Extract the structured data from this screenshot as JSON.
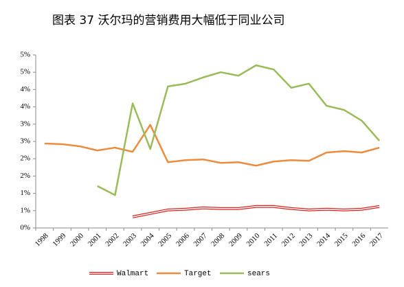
{
  "chart_data": {
    "type": "line",
    "title": "图表 37 沃尔玛的营销费用大幅低于同业公司",
    "categories": [
      "1998",
      "1999",
      "2000",
      "2001",
      "2002",
      "2003",
      "2004",
      "2005",
      "2006",
      "2007",
      "2008",
      "2009",
      "2010",
      "2011",
      "2012",
      "2013",
      "2014",
      "2015",
      "2016",
      "2017"
    ],
    "series": [
      {
        "name": "Walmart",
        "color": "#e02020",
        "values": [
          null,
          null,
          null,
          null,
          null,
          0.32,
          0.42,
          0.52,
          0.54,
          0.58,
          0.56,
          0.56,
          0.62,
          0.62,
          0.56,
          0.52,
          0.54,
          0.52,
          0.54,
          0.62
        ]
      },
      {
        "name": "Target",
        "color": "#ee8a3c",
        "values": [
          2.44,
          2.42,
          2.36,
          2.24,
          2.32,
          2.2,
          2.98,
          1.9,
          1.96,
          1.98,
          1.88,
          1.9,
          1.8,
          1.92,
          1.96,
          1.94,
          2.18,
          2.22,
          2.18,
          2.32
        ]
      },
      {
        "name": "sears",
        "color": "#9bbb59",
        "values": [
          null,
          null,
          null,
          1.21,
          0.95,
          3.6,
          2.28,
          4.09,
          4.17,
          4.35,
          4.5,
          4.4,
          4.7,
          4.58,
          4.05,
          4.17,
          3.53,
          3.41,
          3.1,
          2.52
        ]
      }
    ],
    "ylim": [
      0,
      5
    ],
    "yticks": [
      {
        "value": 0,
        "label": "0%"
      },
      {
        "value": 0.5,
        "label": "1%"
      },
      {
        "value": 1,
        "label": "1%"
      },
      {
        "value": 1.5,
        "label": "2%"
      },
      {
        "value": 2,
        "label": "2%"
      },
      {
        "value": 2.5,
        "label": "3%"
      },
      {
        "value": 3,
        "label": "3%"
      },
      {
        "value": 3.5,
        "label": "4%"
      },
      {
        "value": 4,
        "label": "4%"
      },
      {
        "value": 4.5,
        "label": "5%"
      },
      {
        "value": 5,
        "label": "5%"
      }
    ],
    "grid": false,
    "legend": "bottom"
  }
}
